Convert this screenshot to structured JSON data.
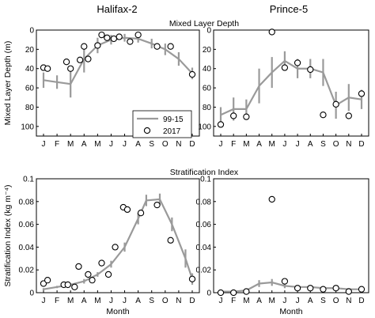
{
  "colors": {
    "climatology": "#9a9a9a",
    "observation": "#000000"
  },
  "columns": [
    "Halifax-2",
    "Prince-5"
  ],
  "rows": [
    "Mixed Layer Depth",
    "Stratification Index"
  ],
  "legend": {
    "climatology": "99-15",
    "observation": "2017",
    "placement": "bottom-right"
  },
  "chart_data": [
    {
      "type": "line",
      "panel": "Halifax-2 Mixed Layer Depth",
      "categories": [
        "J",
        "F",
        "M",
        "A",
        "M",
        "J",
        "J",
        "A",
        "S",
        "O",
        "N",
        "D"
      ],
      "xlabel": "",
      "ylabel": "Mixed Layer Depth (m)",
      "ylim": [
        0,
        110
      ],
      "y_inverted": true,
      "yticks": [
        0,
        20,
        40,
        60,
        80,
        100
      ],
      "series": [
        {
          "name": "99-15",
          "values": [
            52,
            54,
            56,
            30,
            16,
            10,
            8,
            9,
            14,
            20,
            30,
            45
          ],
          "error": [
            8,
            7,
            14,
            14,
            8,
            5,
            4,
            4,
            5,
            6,
            7,
            6
          ]
        },
        {
          "name": "2017",
          "x": [
            1,
            1.3,
            2.7,
            3,
            3.7,
            4,
            4.3,
            5,
            5.3,
            5.7,
            6.2,
            6.6,
            7.4,
            8,
            9.4,
            10.4,
            12
          ],
          "values": [
            39,
            40,
            33,
            40,
            31,
            17,
            30,
            16,
            5,
            8,
            9,
            7,
            12,
            5,
            17,
            17,
            46
          ]
        }
      ]
    },
    {
      "type": "line",
      "panel": "Prince-5 Mixed Layer Depth",
      "categories": [
        "J",
        "F",
        "M",
        "A",
        "M",
        "J",
        "J",
        "A",
        "S",
        "O",
        "N",
        "D"
      ],
      "xlabel": "",
      "ylabel": "",
      "ylim": [
        0,
        110
      ],
      "y_inverted": true,
      "yticks": [
        0,
        20,
        40,
        60,
        80,
        100
      ],
      "series": [
        {
          "name": "99-15",
          "values": [
            88,
            82,
            82,
            58,
            44,
            32,
            40,
            40,
            44,
            78,
            70,
            72
          ],
          "error": [
            8,
            12,
            10,
            18,
            16,
            10,
            10,
            10,
            14,
            14,
            14,
            10
          ]
        },
        {
          "name": "2017",
          "x": [
            1,
            2,
            3,
            5,
            6,
            7,
            8,
            9,
            10,
            11,
            12
          ],
          "values": [
            98,
            89,
            90,
            2,
            39,
            34,
            41,
            88,
            77,
            89,
            66
          ]
        }
      ]
    },
    {
      "type": "line",
      "panel": "Halifax-2 Stratification Index",
      "categories": [
        "J",
        "F",
        "M",
        "A",
        "M",
        "J",
        "J",
        "A",
        "S",
        "O",
        "N",
        "D"
      ],
      "xlabel": "Month",
      "ylabel": "Stratification Index (kg m⁻⁴)",
      "ylim": [
        0,
        0.1
      ],
      "yticks": [
        0,
        0.02,
        0.04,
        0.06,
        0.08,
        0.1
      ],
      "ytick_labels": [
        "0",
        "0.02",
        "0.04",
        "0.06",
        "0.08",
        "0.1"
      ],
      "series": [
        {
          "name": "99-15",
          "values": [
            0.003,
            0.005,
            0.007,
            0.01,
            0.016,
            0.025,
            0.04,
            0.065,
            0.081,
            0.082,
            0.06,
            0.03,
            0.012
          ],
          "x": [
            1,
            2,
            3,
            4,
            5,
            6,
            7,
            8,
            8.6,
            9.6,
            10.5,
            11.5,
            12
          ],
          "error": [
            0.001,
            0.001,
            0.001,
            0.002,
            0.002,
            0.003,
            0.004,
            0.005,
            0.005,
            0.005,
            0.006,
            0.008,
            0.005
          ]
        },
        {
          "name": "2017",
          "x": [
            1,
            1.3,
            2.5,
            2.8,
            3.3,
            3.6,
            4.3,
            4.6,
            5.3,
            5.8,
            6.3,
            6.9,
            7.2,
            8.2,
            9.4,
            10.4,
            12
          ],
          "values": [
            0.008,
            0.011,
            0.007,
            0.007,
            0.005,
            0.023,
            0.016,
            0.011,
            0.026,
            0.016,
            0.04,
            0.075,
            0.073,
            0.07,
            0.077,
            0.046,
            0.012
          ]
        }
      ]
    },
    {
      "type": "line",
      "panel": "Prince-5 Stratification Index",
      "categories": [
        "J",
        "F",
        "M",
        "A",
        "M",
        "J",
        "J",
        "A",
        "S",
        "O",
        "N",
        "D"
      ],
      "xlabel": "Month",
      "ylabel": "",
      "ylim": [
        0,
        0.1
      ],
      "yticks": [
        0,
        0.02,
        0.04,
        0.06,
        0.08,
        0.1
      ],
      "ytick_labels": [
        "0",
        "0.02",
        "0.04",
        "0.06",
        "0.08",
        "0.1"
      ],
      "series": [
        {
          "name": "99-15",
          "values": [
            0.001,
            0.001,
            0.002,
            0.008,
            0.009,
            0.006,
            0.005,
            0.005,
            0.004,
            0.004,
            0.003,
            0.003
          ],
          "error": [
            0.001,
            0.001,
            0.001,
            0.003,
            0.003,
            0.002,
            0.001,
            0.001,
            0.001,
            0.001,
            0.001,
            0.001
          ]
        },
        {
          "name": "2017",
          "x": [
            1,
            2,
            3,
            5,
            6,
            7,
            8,
            9,
            10,
            11,
            12
          ],
          "values": [
            0.0,
            0.0,
            0.001,
            0.082,
            0.01,
            0.004,
            0.004,
            0.003,
            0.004,
            0.001,
            0.003
          ]
        }
      ]
    }
  ]
}
